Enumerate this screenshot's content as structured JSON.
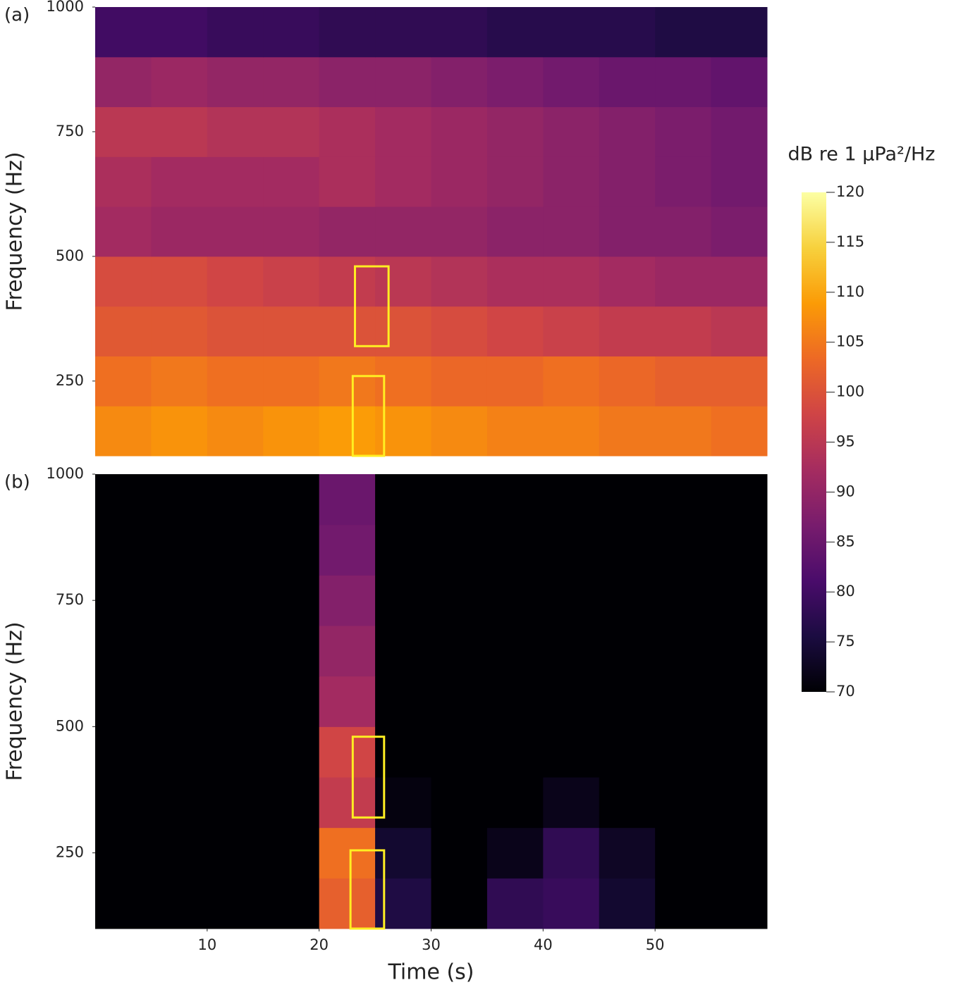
{
  "chart_data": [
    {
      "type": "heatmap",
      "panel_label": "(a)",
      "ylabel": "Frequency (Hz)",
      "xbins": [
        0,
        5,
        10,
        15,
        20,
        25,
        30,
        35,
        40,
        45,
        50,
        55,
        60
      ],
      "ybins": [
        100,
        200,
        300,
        400,
        500,
        600,
        700,
        800,
        900,
        1000
      ],
      "z": [
        [
          107,
          108,
          107,
          108,
          109,
          108,
          107,
          106,
          106,
          105,
          105,
          104
        ],
        [
          104,
          105,
          104,
          104,
          105,
          104,
          103,
          103,
          104,
          103,
          102,
          102
        ],
        [
          101,
          101,
          100,
          100,
          100,
          100,
          99,
          98,
          97,
          96,
          96,
          95
        ],
        [
          99,
          99,
          98,
          97,
          96,
          95,
          94,
          93,
          93,
          92,
          91,
          91
        ],
        [
          92,
          91,
          91,
          91,
          90,
          90,
          90,
          89,
          89,
          88,
          88,
          87
        ],
        [
          93,
          92,
          92,
          92,
          93,
          92,
          91,
          90,
          89,
          88,
          87,
          86
        ],
        [
          95,
          95,
          94,
          94,
          93,
          92,
          91,
          90,
          89,
          88,
          87,
          86
        ],
        [
          90,
          91,
          90,
          90,
          89,
          89,
          88,
          87,
          86,
          85,
          85,
          84
        ],
        [
          80,
          80,
          79,
          79,
          78,
          78,
          78,
          77,
          77,
          77,
          76,
          76
        ]
      ],
      "xlim": [
        0,
        60
      ],
      "ylim": [
        100,
        1000
      ],
      "yticks": [
        250,
        500,
        750,
        1000
      ],
      "boxes": [
        {
          "x": [
            23.2,
            26.2
          ],
          "y": [
            320,
            480
          ]
        },
        {
          "x": [
            23,
            25.8
          ],
          "y": [
            100,
            260
          ]
        }
      ],
      "box_color": "#ffee22"
    },
    {
      "type": "heatmap",
      "panel_label": "(b)",
      "ylabel": "Frequency (Hz)",
      "xlabel": "Time (s)",
      "xbins": [
        0,
        5,
        10,
        15,
        20,
        25,
        30,
        35,
        40,
        45,
        50,
        55,
        60
      ],
      "ybins": [
        100,
        200,
        300,
        400,
        500,
        600,
        700,
        800,
        900,
        1000
      ],
      "z": [
        [
          70,
          70,
          70,
          70,
          102,
          76,
          70,
          78,
          79,
          74,
          70,
          70
        ],
        [
          70,
          70,
          70,
          70,
          104,
          74,
          70,
          72,
          78,
          73,
          70,
          70
        ],
        [
          70,
          70,
          70,
          70,
          96,
          71,
          70,
          70,
          72,
          70,
          70,
          70
        ],
        [
          70,
          70,
          70,
          70,
          98,
          70,
          70,
          70,
          70,
          70,
          70,
          70
        ],
        [
          70,
          70,
          70,
          70,
          92,
          70,
          70,
          70,
          70,
          70,
          70,
          70
        ],
        [
          70,
          70,
          70,
          70,
          90,
          70,
          70,
          70,
          70,
          70,
          70,
          70
        ],
        [
          70,
          70,
          70,
          70,
          88,
          70,
          70,
          70,
          70,
          70,
          70,
          70
        ],
        [
          70,
          70,
          70,
          70,
          86,
          70,
          70,
          70,
          70,
          70,
          70,
          70
        ],
        [
          70,
          70,
          70,
          70,
          85,
          70,
          70,
          70,
          70,
          70,
          70,
          70
        ]
      ],
      "xlim": [
        0,
        60
      ],
      "ylim": [
        100,
        1000
      ],
      "xticks": [
        10,
        20,
        30,
        40,
        50
      ],
      "yticks": [
        250,
        500,
        750,
        1000
      ],
      "boxes": [
        {
          "x": [
            23,
            25.8
          ],
          "y": [
            320,
            480
          ]
        },
        {
          "x": [
            22.8,
            25.8
          ],
          "y": [
            100,
            255
          ]
        }
      ],
      "box_color": "#ffee22"
    }
  ],
  "colorbar": {
    "label": "dB re 1 μPa²/Hz",
    "lim": [
      70,
      120
    ],
    "ticks": [
      70,
      75,
      80,
      85,
      90,
      95,
      100,
      105,
      110,
      115,
      120
    ],
    "colormap": [
      "#000004",
      "#1b0c41",
      "#4a0c6b",
      "#781c6d",
      "#a52c60",
      "#cf4446",
      "#ed6925",
      "#fb9b06",
      "#f7d13d",
      "#fcffa4"
    ]
  }
}
